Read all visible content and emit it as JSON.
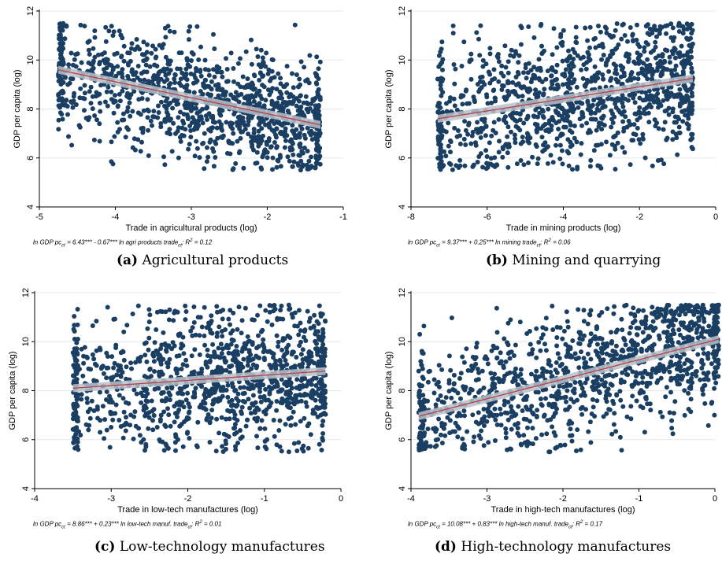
{
  "colors": {
    "dot": "#1a3f63",
    "fit_line": "#b5414a",
    "ci_band": "#b9c0c8",
    "grid": "#e6e9ec"
  },
  "panels": [
    {
      "caption_letter": "(a)",
      "caption_text": "Agricultural products",
      "equation": {
        "pre": "ln GDP pc",
        "sub1": "ct",
        "mid": " = 6.43*** - 0.67*** ln agri products trade",
        "sub2": "ct",
        "post": "; R",
        "sup": "2",
        "end": " = 0.12"
      }
    },
    {
      "caption_letter": "(b)",
      "caption_text": "Mining and quarrying",
      "equation": {
        "pre": "ln GDP pc",
        "sub1": "ct",
        "mid": " = 9.37*** + 0.25*** ln mining trade",
        "sub2": "ct",
        "post": "; R",
        "sup": "2",
        "end": " = 0.06"
      }
    },
    {
      "caption_letter": "(c)",
      "caption_text": "Low-technology manufactures",
      "equation": {
        "pre": "ln GDP pc",
        "sub1": "ct",
        "mid": " = 8.86*** + 0.23*** ln low-tech manuf. trade",
        "sub2": "ct",
        "post": "; R",
        "sup": "2",
        "end": " = 0.01"
      }
    },
    {
      "caption_letter": "(d)",
      "caption_text": "High-technology manufactures",
      "equation": {
        "pre": "ln GDP pc",
        "sub1": "ct",
        "mid": " = 10.08*** + 0.83*** ln high-tech manuf. trade",
        "sub2": "ct",
        "post": "; R",
        "sup": "2",
        "end": " = 0.17"
      }
    }
  ],
  "chart_data": [
    {
      "type": "scatter",
      "xlabel": "Trade in agricultural products (log)",
      "ylabel": "GDP per capita (log)",
      "xlim": [
        -5,
        -1
      ],
      "ylim": [
        4,
        12
      ],
      "xticks": [
        -5,
        -4,
        -3,
        -2,
        -1
      ],
      "yticks": [
        4,
        6,
        8,
        10,
        12
      ],
      "grid": true,
      "fit_line": {
        "x": [
          -4.75,
          -1.3
        ],
        "y": [
          9.6,
          7.35
        ]
      },
      "cloud": {
        "x_min": -4.75,
        "x_max": -1.3,
        "y_min": 5.5,
        "y_max": 11.5,
        "slope": -0.67,
        "intercept": 6.43,
        "spread": 1.2,
        "n": 1200
      }
    },
    {
      "type": "scatter",
      "xlabel": "Trade in mining products (log)",
      "ylabel": "GDP per capita (log)",
      "xlim": [
        -8,
        0
      ],
      "ylim": [
        4,
        12
      ],
      "xticks": [
        -8,
        -6,
        -4,
        -2,
        0
      ],
      "yticks": [
        4,
        6,
        8,
        10,
        12
      ],
      "grid": true,
      "fit_line": {
        "x": [
          -7.3,
          -0.6
        ],
        "y": [
          7.6,
          9.25
        ]
      },
      "cloud": {
        "x_min": -7.3,
        "x_max": -0.6,
        "y_min": 5.5,
        "y_max": 11.5,
        "slope": 0.25,
        "intercept": 9.37,
        "spread": 1.45,
        "n": 1200
      }
    },
    {
      "type": "scatter",
      "xlabel": "Trade in low-tech manufactures  (log)",
      "ylabel": "GDP per capita (log)",
      "xlim": [
        -4,
        0
      ],
      "ylim": [
        4,
        12
      ],
      "xticks": [
        -4,
        -3,
        -2,
        -1,
        0
      ],
      "yticks": [
        4,
        6,
        8,
        10,
        12
      ],
      "grid": true,
      "fit_line": {
        "x": [
          -3.5,
          -0.2
        ],
        "y": [
          8.1,
          8.8
        ]
      },
      "cloud": {
        "x_min": -3.5,
        "x_max": -0.2,
        "y_min": 5.5,
        "y_max": 11.5,
        "slope": 0.23,
        "intercept": 8.86,
        "spread": 1.45,
        "n": 1200
      }
    },
    {
      "type": "scatter",
      "xlabel": "Trade in high-tech manufactures (log)",
      "ylabel": "GDP per capita (log)",
      "xlim": [
        -4,
        0
      ],
      "ylim": [
        4,
        12
      ],
      "xticks": [
        -4,
        -3,
        -2,
        -1,
        0
      ],
      "yticks": [
        4,
        6,
        8,
        10,
        12
      ],
      "grid": true,
      "fit_line": {
        "x": [
          -3.9,
          0.05
        ],
        "y": [
          6.95,
          10.1
        ]
      },
      "cloud": {
        "x_min": -3.9,
        "x_max": 0.05,
        "y_min": 5.5,
        "y_max": 11.5,
        "slope": 0.83,
        "intercept": 10.08,
        "spread": 1.3,
        "n": 1200
      }
    }
  ]
}
